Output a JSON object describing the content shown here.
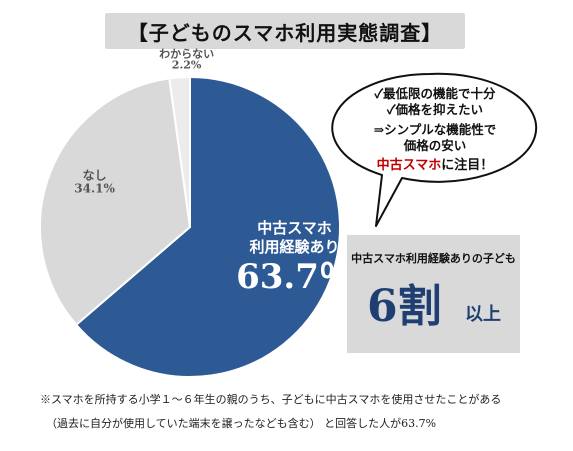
{
  "title": "【子どものスマホ利用実態調査】",
  "chart_data": {
    "type": "pie",
    "start": "top",
    "direction": "clockwise",
    "slices": [
      {
        "label_lines": [
          "中古スマホ",
          "利用経験あり"
        ],
        "value": 63.7,
        "value_label": "63.7％",
        "color": "#2d5a94"
      },
      {
        "label_lines": [
          "なし"
        ],
        "value": 34.1,
        "value_label": "34.1%",
        "color": "#d9d9d9"
      },
      {
        "label_lines": [
          "わからない"
        ],
        "value": 2.2,
        "value_label": "2.2%",
        "color": "#ececec"
      }
    ]
  },
  "callout": {
    "line1": "✓最低限の機能で十分",
    "line2": "✓価格を抑えたい",
    "line3": "⇒シンプルな機能性で",
    "line4": "価格の安い",
    "line5_highlight": "中古スマホ",
    "line5_rest": "に注目！"
  },
  "stat_box": {
    "heading": "中古スマホ利用経験ありの子ども",
    "big": "6割",
    "small": "以上"
  },
  "footnote": {
    "line1": "※スマホを所持する小学１～６年生の親のうち、子どもに中古スマホを使用させたことがある",
    "line2": "（過去に自分が使用していた端末を譲ったなども含む） と回答した人が63.7%"
  }
}
